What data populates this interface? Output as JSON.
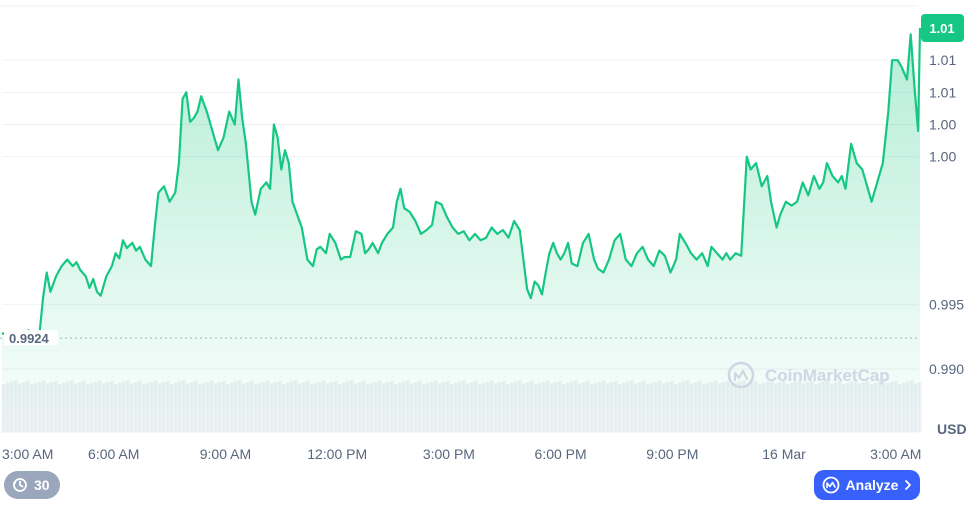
{
  "chart_data": {
    "type": "area",
    "ylim": [
      0.9855,
      1.0165
    ],
    "y_ticks": [
      {
        "value": 1.014,
        "label": "1.01"
      },
      {
        "value": 1.0115,
        "label": "1.01"
      },
      {
        "value": 1.009,
        "label": "1.00"
      },
      {
        "value": 1.0065,
        "label": "1.00"
      },
      {
        "value": 0.995,
        "label": "0.995"
      },
      {
        "value": 0.99,
        "label": "0.990"
      }
    ],
    "unit_label": "USD",
    "x_ticks": [
      {
        "hour": 0,
        "label": "3:00 AM"
      },
      {
        "hour": 3,
        "label": "6:00 AM"
      },
      {
        "hour": 6,
        "label": "9:00 AM"
      },
      {
        "hour": 9,
        "label": "12:00 PM"
      },
      {
        "hour": 12,
        "label": "3:00 PM"
      },
      {
        "hour": 15,
        "label": "6:00 PM"
      },
      {
        "hour": 18,
        "label": "9:00 PM"
      },
      {
        "hour": 21,
        "label": "16 Mar"
      },
      {
        "hour": 24,
        "label": "3:00 AM"
      }
    ],
    "x_range_hours": [
      0,
      24.65
    ],
    "reference_line": {
      "value": 0.9924,
      "label": "0.9924"
    },
    "current_price": {
      "value": 1.0165,
      "label": "1.01"
    },
    "series": [
      {
        "color": "#16c784",
        "points": [
          [
            0.0,
            0.9928
          ],
          [
            0.15,
            0.9926
          ],
          [
            0.35,
            0.9924
          ],
          [
            0.55,
            0.9927
          ],
          [
            0.7,
            0.993
          ],
          [
            0.85,
            0.9928
          ],
          [
            1.0,
            0.9925
          ],
          [
            1.1,
            0.9955
          ],
          [
            1.2,
            0.9975
          ],
          [
            1.3,
            0.996
          ],
          [
            1.45,
            0.9972
          ],
          [
            1.6,
            0.998
          ],
          [
            1.75,
            0.9985
          ],
          [
            1.9,
            0.998
          ],
          [
            2.0,
            0.9983
          ],
          [
            2.1,
            0.9977
          ],
          [
            2.25,
            0.9972
          ],
          [
            2.35,
            0.9963
          ],
          [
            2.45,
            0.997
          ],
          [
            2.55,
            0.996
          ],
          [
            2.65,
            0.9957
          ],
          [
            2.8,
            0.9972
          ],
          [
            2.95,
            0.998
          ],
          [
            3.05,
            0.999
          ],
          [
            3.15,
            0.9986
          ],
          [
            3.25,
            1.0
          ],
          [
            3.35,
            0.9994
          ],
          [
            3.5,
            0.9998
          ],
          [
            3.6,
            0.9992
          ],
          [
            3.7,
            0.9995
          ],
          [
            3.85,
            0.9985
          ],
          [
            4.0,
            0.998
          ],
          [
            4.1,
            1.001
          ],
          [
            4.2,
            1.0037
          ],
          [
            4.35,
            1.0042
          ],
          [
            4.5,
            1.003
          ],
          [
            4.65,
            1.0037
          ],
          [
            4.75,
            1.006
          ],
          [
            4.85,
            1.011
          ],
          [
            4.95,
            1.0115
          ],
          [
            5.05,
            1.0092
          ],
          [
            5.15,
            1.0095
          ],
          [
            5.25,
            1.01
          ],
          [
            5.35,
            1.0112
          ],
          [
            5.5,
            1.01
          ],
          [
            5.65,
            1.0085
          ],
          [
            5.8,
            1.007
          ],
          [
            5.95,
            1.008
          ],
          [
            6.1,
            1.01
          ],
          [
            6.25,
            1.009
          ],
          [
            6.35,
            1.0125
          ],
          [
            6.45,
            1.0095
          ],
          [
            6.55,
            1.0075
          ],
          [
            6.7,
            1.003
          ],
          [
            6.8,
            1.002
          ],
          [
            6.95,
            1.004
          ],
          [
            7.1,
            1.0045
          ],
          [
            7.2,
            1.004
          ],
          [
            7.3,
            1.009
          ],
          [
            7.4,
            1.008
          ],
          [
            7.5,
            1.0055
          ],
          [
            7.6,
            1.007
          ],
          [
            7.7,
            1.006
          ],
          [
            7.8,
            1.003
          ],
          [
            7.9,
            1.0022
          ],
          [
            8.05,
            1.001
          ],
          [
            8.2,
            0.9985
          ],
          [
            8.35,
            0.998
          ],
          [
            8.45,
            0.9993
          ],
          [
            8.55,
            0.9995
          ],
          [
            8.7,
            0.999
          ],
          [
            8.8,
            1.0005
          ],
          [
            8.95,
            0.9998
          ],
          [
            9.1,
            0.9985
          ],
          [
            9.2,
            0.9987
          ],
          [
            9.35,
            0.9987
          ],
          [
            9.5,
            1.0007
          ],
          [
            9.65,
            1.0005
          ],
          [
            9.75,
            0.999
          ],
          [
            9.85,
            0.9993
          ],
          [
            9.95,
            0.9998
          ],
          [
            10.1,
            0.999
          ],
          [
            10.2,
            0.9998
          ],
          [
            10.35,
            1.0005
          ],
          [
            10.5,
            1.001
          ],
          [
            10.6,
            1.003
          ],
          [
            10.7,
            1.004
          ],
          [
            10.8,
            1.0025
          ],
          [
            10.95,
            1.0022
          ],
          [
            11.1,
            1.0015
          ],
          [
            11.25,
            1.0005
          ],
          [
            11.4,
            1.0008
          ],
          [
            11.55,
            1.0012
          ],
          [
            11.65,
            1.003
          ],
          [
            11.8,
            1.0028
          ],
          [
            11.95,
            1.0018
          ],
          [
            12.1,
            1.001
          ],
          [
            12.25,
            1.0005
          ],
          [
            12.4,
            1.0007
          ],
          [
            12.55,
            1.0
          ],
          [
            12.7,
            1.0005
          ],
          [
            12.85,
            1.0
          ],
          [
            13.0,
            1.0002
          ],
          [
            13.15,
            1.001
          ],
          [
            13.3,
            1.0005
          ],
          [
            13.45,
            1.0008
          ],
          [
            13.6,
            1.0002
          ],
          [
            13.75,
            1.0015
          ],
          [
            13.9,
            1.0008
          ],
          [
            14.0,
            0.9985
          ],
          [
            14.1,
            0.9962
          ],
          [
            14.2,
            0.9955
          ],
          [
            14.3,
            0.9968
          ],
          [
            14.4,
            0.9965
          ],
          [
            14.5,
            0.9958
          ],
          [
            14.6,
            0.9975
          ],
          [
            14.7,
            0.999
          ],
          [
            14.8,
            0.9998
          ],
          [
            14.9,
            0.999
          ],
          [
            15.0,
            0.9985
          ],
          [
            15.1,
            0.999
          ],
          [
            15.2,
            0.9998
          ],
          [
            15.3,
            0.9982
          ],
          [
            15.45,
            0.998
          ],
          [
            15.6,
            0.9998
          ],
          [
            15.75,
            1.0005
          ],
          [
            15.9,
            0.9985
          ],
          [
            16.0,
            0.9978
          ],
          [
            16.15,
            0.9975
          ],
          [
            16.3,
            0.9985
          ],
          [
            16.45,
            1.0
          ],
          [
            16.6,
            1.0005
          ],
          [
            16.75,
            0.9985
          ],
          [
            16.9,
            0.998
          ],
          [
            17.05,
            0.999
          ],
          [
            17.2,
            0.9995
          ],
          [
            17.35,
            0.9985
          ],
          [
            17.5,
            0.998
          ],
          [
            17.65,
            0.9992
          ],
          [
            17.8,
            0.9988
          ],
          [
            17.95,
            0.9975
          ],
          [
            18.1,
            0.9985
          ],
          [
            18.2,
            1.0005
          ],
          [
            18.35,
            0.9998
          ],
          [
            18.5,
            0.999
          ],
          [
            18.65,
            0.9985
          ],
          [
            18.8,
            0.999
          ],
          [
            18.95,
            0.998
          ],
          [
            19.05,
            0.9995
          ],
          [
            19.2,
            0.999
          ],
          [
            19.35,
            0.9985
          ],
          [
            19.45,
            0.999
          ],
          [
            19.55,
            0.9985
          ],
          [
            19.7,
            0.999
          ],
          [
            19.85,
            0.9988
          ],
          [
            20.0,
            1.0065
          ],
          [
            20.1,
            1.0055
          ],
          [
            20.25,
            1.006
          ],
          [
            20.4,
            1.0042
          ],
          [
            20.55,
            1.005
          ],
          [
            20.65,
            1.003
          ],
          [
            20.8,
            1.001
          ],
          [
            20.9,
            1.002
          ],
          [
            21.05,
            1.003
          ],
          [
            21.2,
            1.0027
          ],
          [
            21.35,
            1.003
          ],
          [
            21.5,
            1.0045
          ],
          [
            21.65,
            1.0035
          ],
          [
            21.8,
            1.005
          ],
          [
            21.95,
            1.004
          ],
          [
            22.05,
            1.0045
          ],
          [
            22.15,
            1.006
          ],
          [
            22.3,
            1.005
          ],
          [
            22.45,
            1.0045
          ],
          [
            22.55,
            1.005
          ],
          [
            22.65,
            1.004
          ],
          [
            22.8,
            1.0075
          ],
          [
            22.95,
            1.006
          ],
          [
            23.1,
            1.0055
          ],
          [
            23.25,
            1.004
          ],
          [
            23.35,
            1.003
          ],
          [
            23.5,
            1.0045
          ],
          [
            23.65,
            1.006
          ],
          [
            23.8,
            1.01
          ],
          [
            23.9,
            1.014
          ],
          [
            24.05,
            1.014
          ],
          [
            24.15,
            1.0135
          ],
          [
            24.3,
            1.0125
          ],
          [
            24.4,
            1.016
          ],
          [
            24.5,
            1.012
          ],
          [
            24.6,
            1.0085
          ],
          [
            24.65,
            1.0165
          ]
        ]
      }
    ],
    "volume_baseline": 0.9894
  },
  "watermark": "CoinMarketCap",
  "controls": {
    "timeframe_label": "30",
    "analyze_label": "Analyze"
  },
  "colors": {
    "up_green": "#16c784",
    "accent_blue": "#3861fb",
    "axis_text": "#58667e",
    "gridline": "#eff2f5"
  }
}
